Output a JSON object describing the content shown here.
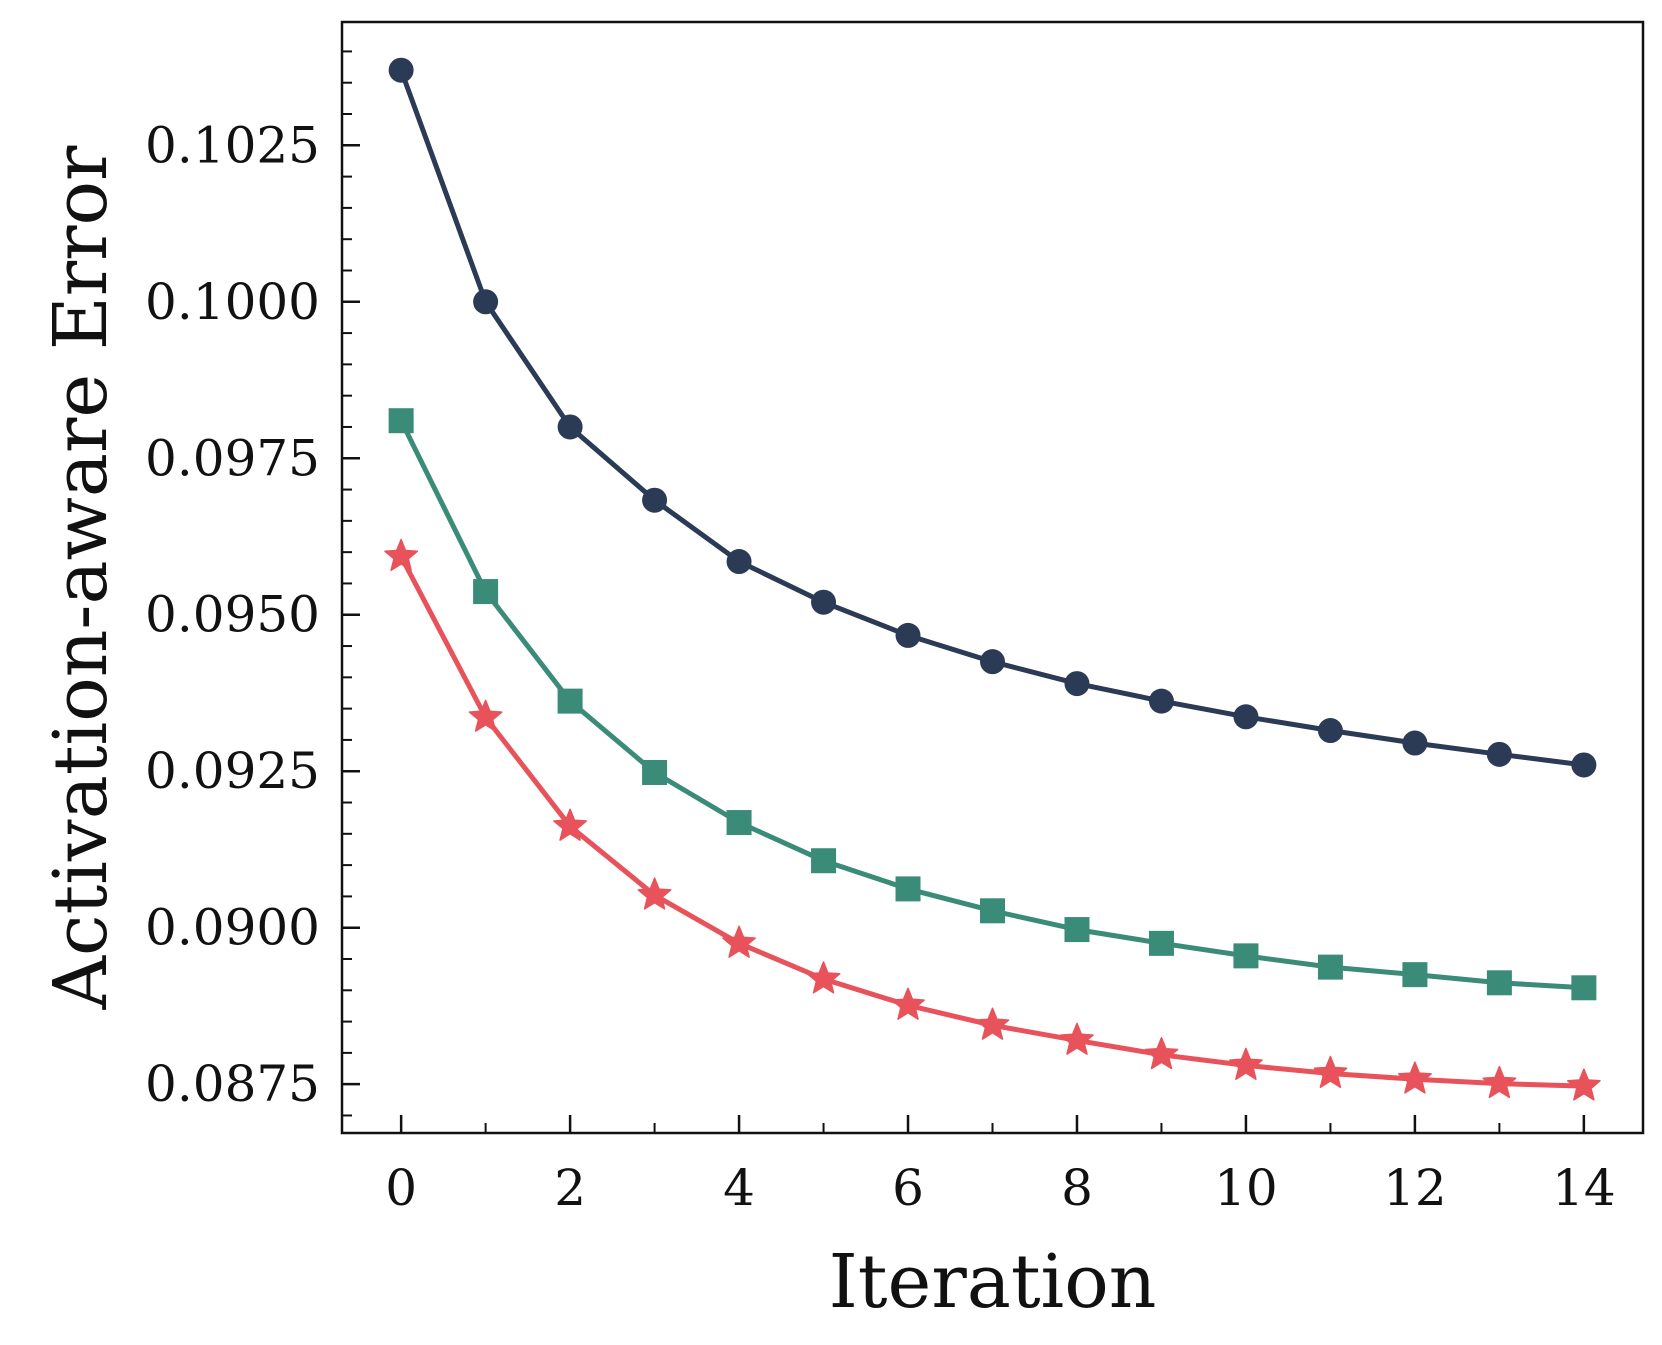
{
  "chart_data": {
    "type": "line",
    "title": "",
    "xlabel": "Iteration",
    "ylabel": "Activation-aware Error",
    "xlim": [
      -0.7,
      14.7
    ],
    "ylim": [
      0.08672,
      0.10447
    ],
    "x_ticks": [
      0,
      2,
      4,
      6,
      8,
      10,
      12,
      14
    ],
    "x_minor_ticks": [
      1,
      3,
      5,
      7,
      9,
      11,
      13
    ],
    "y_ticks": [
      0.0875,
      0.09,
      0.0925,
      0.095,
      0.0975,
      0.1,
      0.1025
    ],
    "y_tick_labels": [
      "0.0875",
      "0.0900",
      "0.0925",
      "0.0950",
      "0.0975",
      "0.1000",
      "0.1025"
    ],
    "y_minor_step": 0.0005,
    "grid": false,
    "legend": null,
    "x": [
      0,
      1,
      2,
      3,
      4,
      5,
      6,
      7,
      8,
      9,
      10,
      11,
      12,
      13,
      14
    ],
    "series": [
      {
        "name": "series-navy",
        "color": "#2b3a55",
        "marker": "circle",
        "values": [
          0.1037,
          0.1,
          0.098,
          0.09683,
          0.09585,
          0.0952,
          0.09467,
          0.09425,
          0.0939,
          0.09362,
          0.09337,
          0.09315,
          0.09295,
          0.09277,
          0.0926
        ]
      },
      {
        "name": "series-teal",
        "color": "#3a8c78",
        "marker": "square",
        "values": [
          0.0981,
          0.09537,
          0.09362,
          0.09248,
          0.09168,
          0.09107,
          0.09062,
          0.09027,
          0.08997,
          0.08975,
          0.08955,
          0.08937,
          0.08925,
          0.08912,
          0.08904
        ]
      },
      {
        "name": "series-red",
        "color": "#e8525a",
        "marker": "star",
        "values": [
          0.09593,
          0.09336,
          0.09162,
          0.09052,
          0.08975,
          0.08918,
          0.08876,
          0.08844,
          0.0882,
          0.08797,
          0.0878,
          0.08767,
          0.08758,
          0.08751,
          0.08747
        ]
      }
    ]
  }
}
